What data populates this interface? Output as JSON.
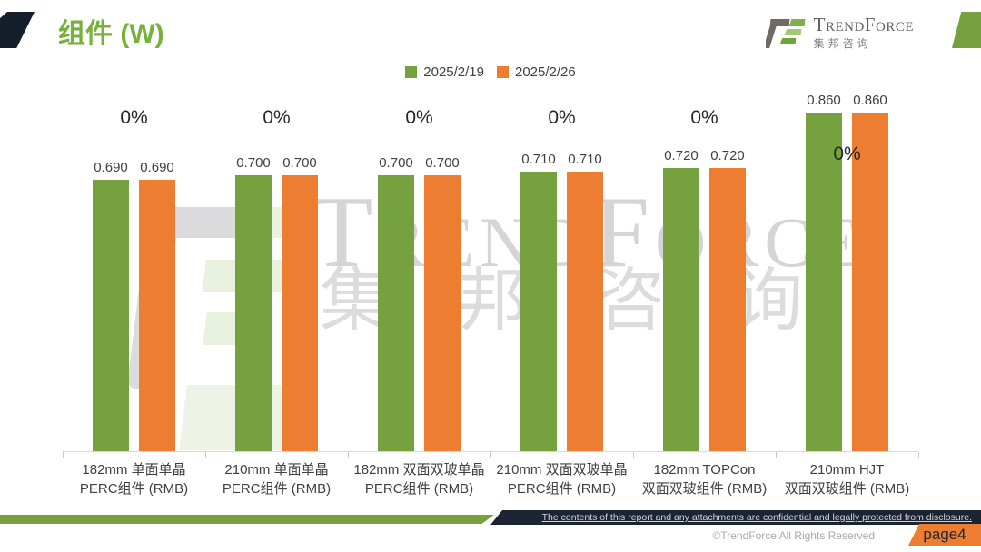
{
  "header": {
    "title": "组件 (W)",
    "logo": {
      "brand_en": "TrendForce",
      "brand_cn": "集邦咨询"
    }
  },
  "watermark": {
    "text_en": "TrendForce",
    "text_cn": "集邦咨询"
  },
  "chart_data": {
    "type": "bar",
    "title": "组件 (W)",
    "legend_position": "top",
    "grid": false,
    "y_axis_visible": false,
    "ylim": [
      0,
      0.95
    ],
    "categories": [
      "182mm 单面单晶 PERC组件 (RMB)",
      "210mm 单面单晶 PERC组件 (RMB)",
      "182mm 双面双玻单晶 PERC组件 (RMB)",
      "210mm 双面双玻单晶 PERC组件 (RMB)",
      "182mm TOPCon 双面双玻组件 (RMB)",
      "210mm HJT 双面双玻组件 (RMB)"
    ],
    "category_lines": [
      [
        "182mm 单面单晶",
        "PERC组件 (RMB)"
      ],
      [
        "210mm 单面单晶",
        "PERC组件 (RMB)"
      ],
      [
        "182mm 双面双玻单晶",
        "PERC组件 (RMB)"
      ],
      [
        "210mm 双面双玻单晶",
        "PERC组件 (RMB)"
      ],
      [
        "182mm TOPCon",
        "双面双玻组件 (RMB)"
      ],
      [
        "210mm HJT",
        "双面双玻组件 (RMB)"
      ]
    ],
    "series": [
      {
        "name": "2025/2/19",
        "color": "#75A13F",
        "values": [
          0.69,
          0.7,
          0.7,
          0.71,
          0.72,
          0.86
        ]
      },
      {
        "name": "2025/2/26",
        "color": "#ED7D31",
        "values": [
          0.69,
          0.7,
          0.7,
          0.71,
          0.72,
          0.86
        ]
      }
    ],
    "value_label_decimals": 3,
    "change_labels": [
      "0%",
      "0%",
      "0%",
      "0%",
      "0%",
      "0%"
    ]
  },
  "footer": {
    "confidential": "The contents of this report and any attachments are confidential and legally protected from disclosure.",
    "copyright": "©TrendForce All Rights Reserved",
    "page_label": "page4"
  },
  "colors": {
    "series1_green": "#75A13F",
    "series2_orange": "#ED7D31",
    "title_green": "#76B13A",
    "dark_navy": "#1B2433",
    "axis_gray": "#D9D9D9",
    "label_gray": "#404040",
    "watermark_gray": "#C0BEC3"
  }
}
